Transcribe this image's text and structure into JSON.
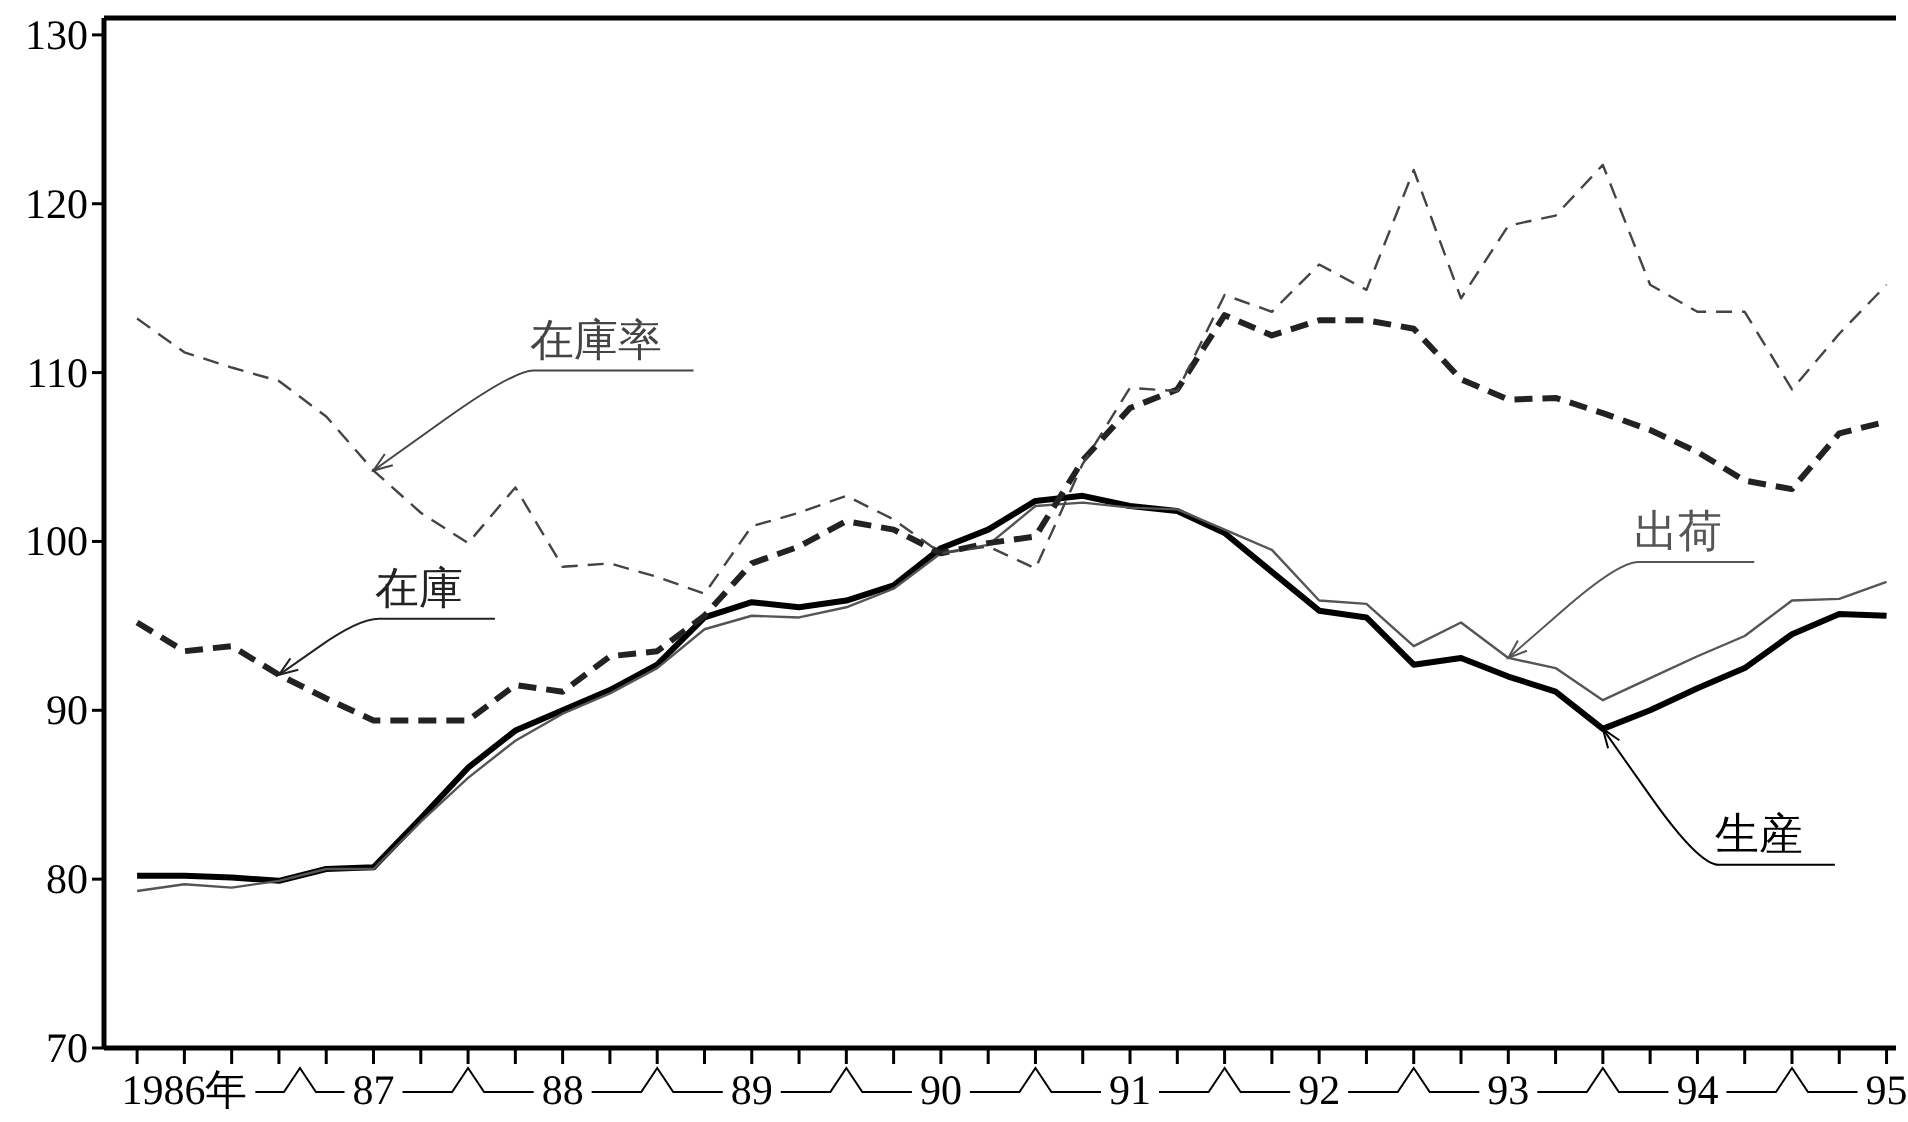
{
  "chart_data": {
    "type": "line",
    "categories": [
      null,
      "1986年",
      null,
      null,
      null,
      "87",
      null,
      null,
      null,
      "88",
      null,
      null,
      null,
      "89",
      null,
      null,
      null,
      "90",
      null,
      null,
      null,
      "91",
      null,
      null,
      null,
      "92",
      null,
      null,
      null,
      "93",
      null,
      null,
      null,
      "94",
      null,
      null,
      null,
      "95"
    ],
    "ylim": [
      70,
      131
    ],
    "yticks": [
      70,
      80,
      90,
      100,
      110,
      120,
      130
    ],
    "grid": false,
    "legend": false,
    "series": [
      {
        "name": "生産",
        "color": "#000000",
        "line_style": "solid",
        "values": [
          80.2,
          80.2,
          80.1,
          79.9,
          80.6,
          80.7,
          83.6,
          86.6,
          88.8,
          90.0,
          91.2,
          92.7,
          95.5,
          96.4,
          96.1,
          96.5,
          97.4,
          99.6,
          100.7,
          102.4,
          102.7,
          102.1,
          101.8,
          100.5,
          98.2,
          95.9,
          95.5,
          92.7,
          93.1,
          92.0,
          91.1,
          88.9,
          90.0,
          91.3,
          92.5,
          94.5,
          95.7,
          95.6
        ]
      },
      {
        "name": "出荷",
        "color": "#555555",
        "line_style": "solid",
        "values": [
          79.3,
          79.7,
          79.5,
          79.9,
          80.6,
          80.6,
          83.4,
          86.0,
          88.2,
          89.8,
          91.0,
          92.5,
          94.8,
          95.6,
          95.5,
          96.1,
          97.2,
          99.3,
          99.8,
          102.1,
          102.3,
          102.0,
          101.9,
          100.7,
          99.5,
          96.5,
          96.3,
          93.8,
          95.2,
          93.1,
          92.5,
          90.6,
          91.9,
          93.2,
          94.4,
          96.5,
          96.6,
          97.6
        ]
      },
      {
        "name": "在庫",
        "color": "#222222",
        "line_style": "dashed",
        "values": [
          95.2,
          93.5,
          93.8,
          92.1,
          90.7,
          89.4,
          89.4,
          89.4,
          91.5,
          91.1,
          93.2,
          93.5,
          95.6,
          98.7,
          99.7,
          101.2,
          100.7,
          99.3,
          99.9,
          100.3,
          104.8,
          107.9,
          109.0,
          113.4,
          112.2,
          113.1,
          113.1,
          112.6,
          109.6,
          108.4,
          108.5,
          107.6,
          106.6,
          105.3,
          103.6,
          103.1,
          106.4,
          107.1
        ]
      },
      {
        "name": "在庫率",
        "color": "#444444",
        "line_style": "dashed",
        "values": [
          113.2,
          111.2,
          110.3,
          109.5,
          107.4,
          104.2,
          101.7,
          99.9,
          103.2,
          98.5,
          98.7,
          97.9,
          96.9,
          100.9,
          101.7,
          102.7,
          101.3,
          99.3,
          99.7,
          98.4,
          104.6,
          109.1,
          108.9,
          114.6,
          113.6,
          116.4,
          114.9,
          122.0,
          114.4,
          118.7,
          119.3,
          122.3,
          115.2,
          113.6,
          113.6,
          109.0,
          112.3,
          115.2
        ]
      }
    ]
  }
}
